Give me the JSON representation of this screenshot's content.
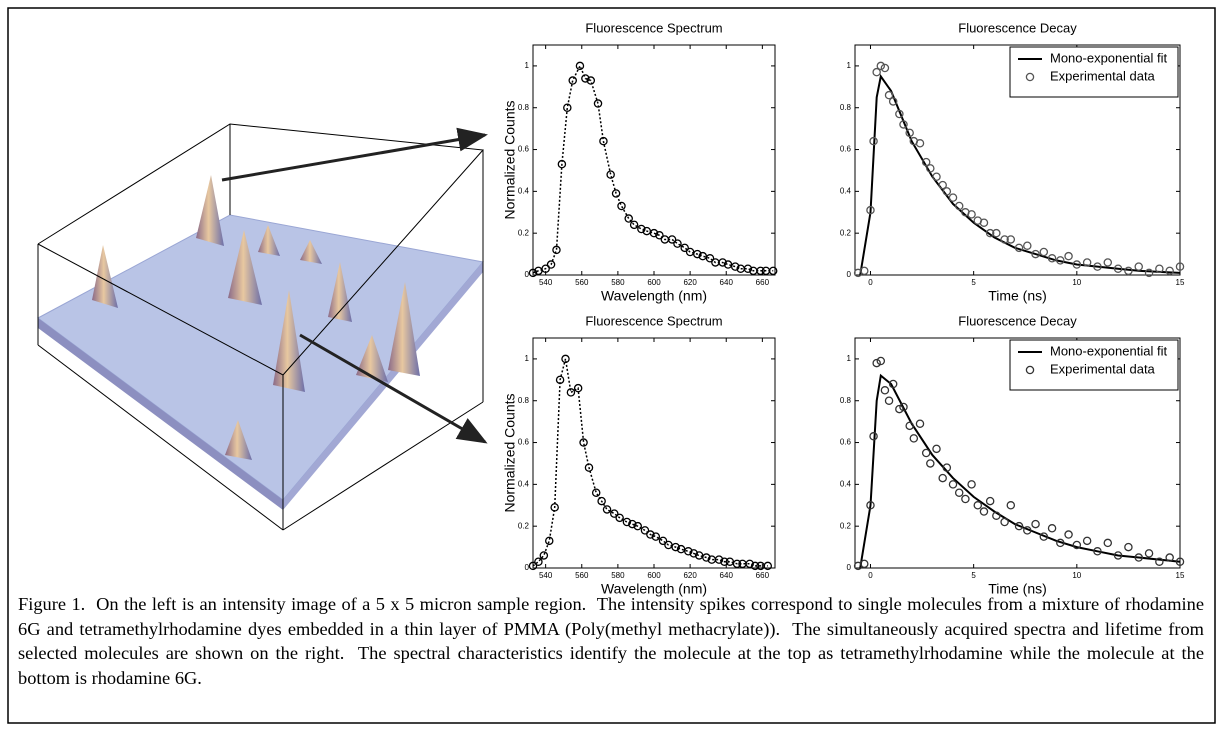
{
  "chart_data": [
    {
      "type": "line",
      "title": "Fluorescence Spectrum",
      "x_label": "Wavelength (nm)",
      "y_label": "Normalized Counts",
      "x": [
        533,
        536,
        540,
        543,
        546,
        549,
        552,
        555,
        559,
        562,
        565,
        569,
        572,
        576,
        579,
        582,
        586,
        589,
        593,
        596,
        600,
        603,
        606,
        610,
        613,
        617,
        620,
        624,
        627,
        631,
        634,
        638,
        641,
        645,
        648,
        652,
        655,
        659,
        662,
        666
      ],
      "values": [
        0.01,
        0.02,
        0.03,
        0.05,
        0.12,
        0.53,
        0.8,
        0.93,
        1.0,
        0.94,
        0.93,
        0.82,
        0.64,
        0.48,
        0.39,
        0.33,
        0.27,
        0.24,
        0.22,
        0.21,
        0.2,
        0.19,
        0.17,
        0.17,
        0.15,
        0.13,
        0.11,
        0.1,
        0.09,
        0.08,
        0.06,
        0.06,
        0.05,
        0.04,
        0.03,
        0.03,
        0.02,
        0.02,
        0.02,
        0.02
      ],
      "color": "#000000",
      "linestyle": "dotted",
      "marker": "circle",
      "xlim": [
        533,
        667
      ],
      "ylim": [
        0,
        1.1
      ],
      "xticks": [
        540,
        560,
        580,
        600,
        620,
        640,
        660
      ],
      "yticks": [
        0,
        0.2,
        0.4,
        0.6,
        0.8,
        1
      ]
    },
    {
      "type": "line",
      "title": "Fluorescence Decay",
      "x_label": "Time (ns)",
      "legend": "upper right",
      "series": [
        {
          "name": "Mono-exponential fit",
          "color": "#000000",
          "linestyle": "solid",
          "marker": "none",
          "x": [
            -0.5,
            0,
            0.3,
            0.5,
            1,
            2,
            3,
            4,
            5,
            6,
            7,
            8,
            9,
            10,
            11,
            12,
            13,
            14,
            15
          ],
          "values": [
            0,
            0.3,
            0.85,
            0.95,
            0.88,
            0.64,
            0.47,
            0.34,
            0.25,
            0.18,
            0.13,
            0.1,
            0.07,
            0.05,
            0.04,
            0.03,
            0.02,
            0.015,
            0.01
          ]
        },
        {
          "name": "Experimental data",
          "color": "#555555",
          "linestyle": "none",
          "marker": "circle",
          "x": [
            -0.6,
            -0.3,
            0,
            0.15,
            0.3,
            0.5,
            0.7,
            0.9,
            1.1,
            1.4,
            1.6,
            1.9,
            2.1,
            2.4,
            2.7,
            2.9,
            3.2,
            3.5,
            3.7,
            4,
            4.3,
            4.6,
            4.9,
            5.2,
            5.5,
            5.8,
            6.1,
            6.5,
            6.8,
            7.2,
            7.6,
            8,
            8.4,
            8.8,
            9.2,
            9.6,
            10,
            10.5,
            11,
            11.5,
            12,
            12.5,
            13,
            13.5,
            14,
            14.5,
            15
          ],
          "values": [
            0.01,
            0.02,
            0.31,
            0.64,
            0.97,
            1.0,
            0.99,
            0.86,
            0.83,
            0.77,
            0.72,
            0.68,
            0.64,
            0.63,
            0.54,
            0.51,
            0.47,
            0.43,
            0.4,
            0.37,
            0.33,
            0.3,
            0.29,
            0.26,
            0.25,
            0.2,
            0.2,
            0.17,
            0.17,
            0.13,
            0.14,
            0.1,
            0.11,
            0.08,
            0.07,
            0.09,
            0.05,
            0.06,
            0.04,
            0.06,
            0.03,
            0.02,
            0.04,
            0.01,
            0.03,
            0.02,
            0.04
          ]
        }
      ],
      "xlim": [
        -0.75,
        15
      ],
      "ylim": [
        0,
        1.1
      ],
      "xticks": [
        0,
        5,
        10,
        15
      ],
      "yticks": [
        0,
        0.2,
        0.4,
        0.6,
        0.8,
        1
      ]
    },
    {
      "type": "line",
      "title": "Fluorescence Spectrum",
      "x_label": "Wavelength (nm)",
      "y_label": "Normalized Counts",
      "x": [
        533,
        536,
        539,
        542,
        545,
        548,
        551,
        554,
        558,
        561,
        564,
        568,
        571,
        574,
        578,
        581,
        585,
        588,
        591,
        595,
        598,
        601,
        605,
        608,
        612,
        615,
        619,
        622,
        625,
        629,
        632,
        636,
        639,
        642,
        646,
        649,
        653,
        656,
        659,
        663
      ],
      "values": [
        0.01,
        0.03,
        0.06,
        0.13,
        0.29,
        0.9,
        1.0,
        0.84,
        0.86,
        0.6,
        0.48,
        0.36,
        0.32,
        0.28,
        0.26,
        0.24,
        0.22,
        0.21,
        0.2,
        0.18,
        0.16,
        0.15,
        0.13,
        0.11,
        0.1,
        0.09,
        0.08,
        0.07,
        0.06,
        0.05,
        0.04,
        0.04,
        0.03,
        0.03,
        0.02,
        0.02,
        0.02,
        0.01,
        0.01,
        0.01
      ],
      "color": "#000000",
      "linestyle": "dotted",
      "marker": "circle",
      "xlim": [
        533,
        667
      ],
      "ylim": [
        0,
        1.1
      ],
      "xticks": [
        540,
        560,
        580,
        600,
        620,
        640,
        660
      ],
      "yticks": [
        0,
        0.2,
        0.4,
        0.6,
        0.8,
        1
      ]
    },
    {
      "type": "line",
      "title": "Fluorescence Decay",
      "x_label": "Time (ns)",
      "legend": "upper right",
      "series": [
        {
          "name": "Mono-exponential fit",
          "color": "#000000",
          "linestyle": "solid",
          "marker": "none",
          "x": [
            -0.5,
            0,
            0.3,
            0.5,
            1,
            2,
            3,
            4,
            5,
            6,
            7,
            8,
            9,
            10,
            11,
            12,
            13,
            14,
            15
          ],
          "values": [
            0,
            0.3,
            0.8,
            0.92,
            0.88,
            0.69,
            0.54,
            0.43,
            0.34,
            0.27,
            0.21,
            0.17,
            0.13,
            0.1,
            0.08,
            0.06,
            0.05,
            0.04,
            0.03
          ]
        },
        {
          "name": "Experimental data",
          "color": "#333333",
          "linestyle": "none",
          "marker": "circle",
          "x": [
            -0.6,
            -0.3,
            0,
            0.15,
            0.3,
            0.5,
            0.7,
            0.9,
            1.1,
            1.4,
            1.6,
            1.9,
            2.1,
            2.4,
            2.7,
            2.9,
            3.2,
            3.5,
            3.7,
            4,
            4.3,
            4.6,
            4.9,
            5.2,
            5.5,
            5.8,
            6.1,
            6.5,
            6.8,
            7.2,
            7.6,
            8,
            8.4,
            8.8,
            9.2,
            9.6,
            10,
            10.5,
            11,
            11.5,
            12,
            12.5,
            13,
            13.5,
            14,
            14.5,
            15
          ],
          "values": [
            0.01,
            0.02,
            0.3,
            0.63,
            0.98,
            0.99,
            0.85,
            0.8,
            0.88,
            0.76,
            0.77,
            0.68,
            0.62,
            0.69,
            0.55,
            0.5,
            0.57,
            0.43,
            0.48,
            0.4,
            0.36,
            0.33,
            0.4,
            0.3,
            0.27,
            0.32,
            0.25,
            0.22,
            0.3,
            0.2,
            0.18,
            0.21,
            0.15,
            0.19,
            0.12,
            0.16,
            0.11,
            0.13,
            0.08,
            0.12,
            0.06,
            0.1,
            0.05,
            0.07,
            0.03,
            0.05,
            0.03
          ]
        }
      ],
      "xlim": [
        -0.75,
        15
      ],
      "ylim": [
        0,
        1.1
      ],
      "xticks": [
        0,
        5,
        10,
        15
      ],
      "yticks": [
        0,
        0.2,
        0.4,
        0.6,
        0.8,
        1
      ]
    }
  ],
  "caption": "Figure 1.  On the left is an intensity image of a 5 x 5 micron sample region.  The intensity spikes correspond to single molecules from a mixture of rhodamine 6G and tetramethylrhodamine dyes embedded in a thin layer of PMMA (Poly(methyl methacrylate)).  The simultaneously acquired spectra and lifetime from selected molecules are shown on the right.  The spectral characteristics identify the molecule at the top as tetramethylrhodamine while the molecule at the bottom is rhodamine 6G."
}
